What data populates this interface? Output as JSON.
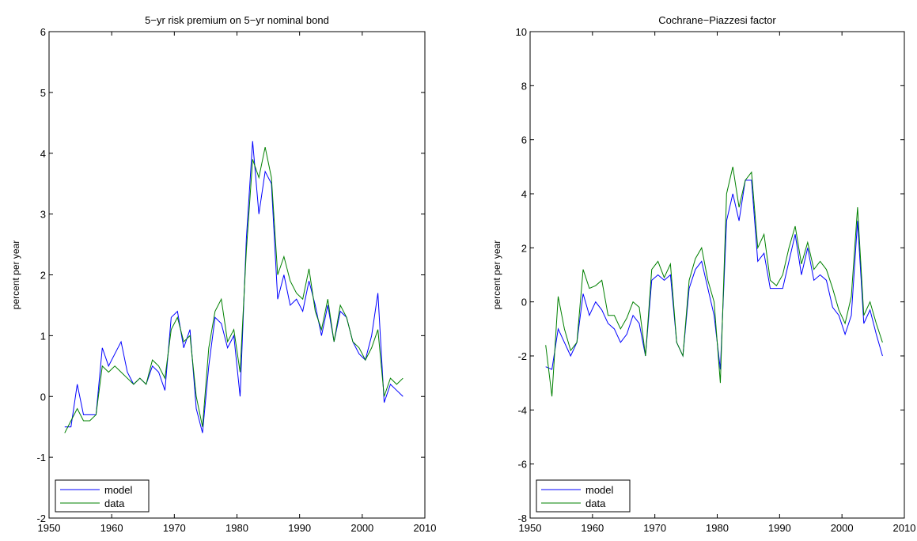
{
  "chart_data": [
    {
      "type": "line",
      "title": "5−yr risk premium on 5−yr nominal bond",
      "y_label": "percent per year",
      "x": [
        1952.5,
        1953.5,
        1954.5,
        1955.5,
        1956.5,
        1957.5,
        1958.5,
        1959.5,
        1960.5,
        1961.5,
        1962.5,
        1963.5,
        1964.5,
        1965.5,
        1966.5,
        1967.5,
        1968.5,
        1969.5,
        1970.5,
        1971.5,
        1972.5,
        1973.5,
        1974.5,
        1975.5,
        1976.5,
        1977.5,
        1978.5,
        1979.5,
        1980.5,
        1981.5,
        1982.5,
        1983.5,
        1984.5,
        1985.5,
        1986.5,
        1987.5,
        1988.5,
        1989.5,
        1990.5,
        1991.5,
        1992.5,
        1993.5,
        1994.5,
        1995.5,
        1996.5,
        1997.5,
        1998.5,
        1999.5,
        2000.5,
        2001.5,
        2002.5,
        2003.5,
        2004.5,
        2005.5,
        2006.5
      ],
      "series": [
        {
          "name": "model",
          "color": "#0000ff",
          "values": [
            -0.5,
            -0.5,
            0.2,
            -0.3,
            -0.3,
            -0.3,
            0.8,
            0.5,
            0.7,
            0.9,
            0.4,
            0.2,
            0.3,
            0.2,
            0.5,
            0.4,
            0.1,
            1.3,
            1.4,
            0.8,
            1.1,
            -0.2,
            -0.6,
            0.5,
            1.3,
            1.2,
            0.8,
            1.0,
            0.0,
            2.6,
            4.2,
            3.0,
            3.7,
            3.5,
            1.6,
            2.0,
            1.5,
            1.6,
            1.4,
            1.9,
            1.5,
            1.0,
            1.5,
            0.9,
            1.4,
            1.3,
            0.9,
            0.7,
            0.6,
            1.0,
            1.7,
            -0.1,
            0.2,
            0.1,
            0.0
          ]
        },
        {
          "name": "data",
          "color": "#008000",
          "values": [
            -0.6,
            -0.4,
            -0.2,
            -0.4,
            -0.4,
            -0.3,
            0.5,
            0.4,
            0.5,
            0.4,
            0.3,
            0.2,
            0.3,
            0.2,
            0.6,
            0.5,
            0.3,
            1.1,
            1.3,
            0.9,
            1.0,
            0.0,
            -0.5,
            0.8,
            1.4,
            1.6,
            0.9,
            1.1,
            0.4,
            2.4,
            3.9,
            3.6,
            4.1,
            3.6,
            2.0,
            2.3,
            1.9,
            1.7,
            1.6,
            2.1,
            1.4,
            1.1,
            1.6,
            0.9,
            1.5,
            1.3,
            0.9,
            0.8,
            0.6,
            0.8,
            1.1,
            0.0,
            0.3,
            0.2,
            0.3
          ]
        }
      ],
      "xlim": [
        1950,
        2010
      ],
      "xticks": [
        1950,
        1960,
        1970,
        1980,
        1990,
        2000,
        2010
      ],
      "ylim": [
        -2,
        6
      ],
      "yticks": [
        -2,
        -1,
        0,
        1,
        2,
        3,
        4,
        5,
        6
      ],
      "legend": "lower-left"
    },
    {
      "type": "line",
      "title": "Cochrane−Piazzesi factor",
      "y_label": "percent per year",
      "x": [
        1952.5,
        1953.5,
        1954.5,
        1955.5,
        1956.5,
        1957.5,
        1958.5,
        1959.5,
        1960.5,
        1961.5,
        1962.5,
        1963.5,
        1964.5,
        1965.5,
        1966.5,
        1967.5,
        1968.5,
        1969.5,
        1970.5,
        1971.5,
        1972.5,
        1973.5,
        1974.5,
        1975.5,
        1976.5,
        1977.5,
        1978.5,
        1979.5,
        1980.5,
        1981.5,
        1982.5,
        1983.5,
        1984.5,
        1985.5,
        1986.5,
        1987.5,
        1988.5,
        1989.5,
        1990.5,
        1991.5,
        1992.5,
        1993.5,
        1994.5,
        1995.5,
        1996.5,
        1997.5,
        1998.5,
        1999.5,
        2000.5,
        2001.5,
        2002.5,
        2003.5,
        2004.5,
        2005.5,
        2006.5
      ],
      "series": [
        {
          "name": "model",
          "color": "#0000ff",
          "values": [
            -2.4,
            -2.5,
            -1.0,
            -1.5,
            -2.0,
            -1.5,
            0.3,
            -0.5,
            0.0,
            -0.3,
            -0.8,
            -1.0,
            -1.5,
            -1.2,
            -0.5,
            -0.8,
            -2.0,
            0.8,
            1.0,
            0.8,
            1.0,
            -1.5,
            -2.0,
            0.5,
            1.2,
            1.5,
            0.5,
            -0.5,
            -2.5,
            3.0,
            4.0,
            3.0,
            4.5,
            4.5,
            1.5,
            1.8,
            0.5,
            0.5,
            0.5,
            1.5,
            2.5,
            1.0,
            2.0,
            0.8,
            1.0,
            0.8,
            -0.2,
            -0.5,
            -1.2,
            -0.5,
            3.0,
            -0.8,
            -0.3,
            -1.2,
            -2.0
          ]
        },
        {
          "name": "data",
          "color": "#008000",
          "values": [
            -1.6,
            -3.5,
            0.2,
            -1.0,
            -1.8,
            -1.5,
            1.2,
            0.5,
            0.6,
            0.8,
            -0.5,
            -0.5,
            -1.0,
            -0.6,
            0.0,
            -0.2,
            -2.0,
            1.2,
            1.5,
            0.9,
            1.4,
            -1.5,
            -2.0,
            0.8,
            1.6,
            2.0,
            0.8,
            0.0,
            -3.0,
            4.0,
            5.0,
            3.5,
            4.5,
            4.8,
            2.0,
            2.5,
            0.8,
            0.6,
            1.0,
            2.0,
            2.8,
            1.4,
            2.2,
            1.2,
            1.5,
            1.2,
            0.5,
            -0.3,
            -0.8,
            0.2,
            3.5,
            -0.5,
            0.0,
            -0.8,
            -1.5
          ]
        }
      ],
      "xlim": [
        1950,
        2010
      ],
      "xticks": [
        1950,
        1960,
        1970,
        1980,
        1990,
        2000,
        2010
      ],
      "ylim": [
        -8,
        10
      ],
      "yticks": [
        -8,
        -6,
        -4,
        -2,
        0,
        2,
        4,
        6,
        8,
        10
      ],
      "legend": "lower-left"
    }
  ]
}
